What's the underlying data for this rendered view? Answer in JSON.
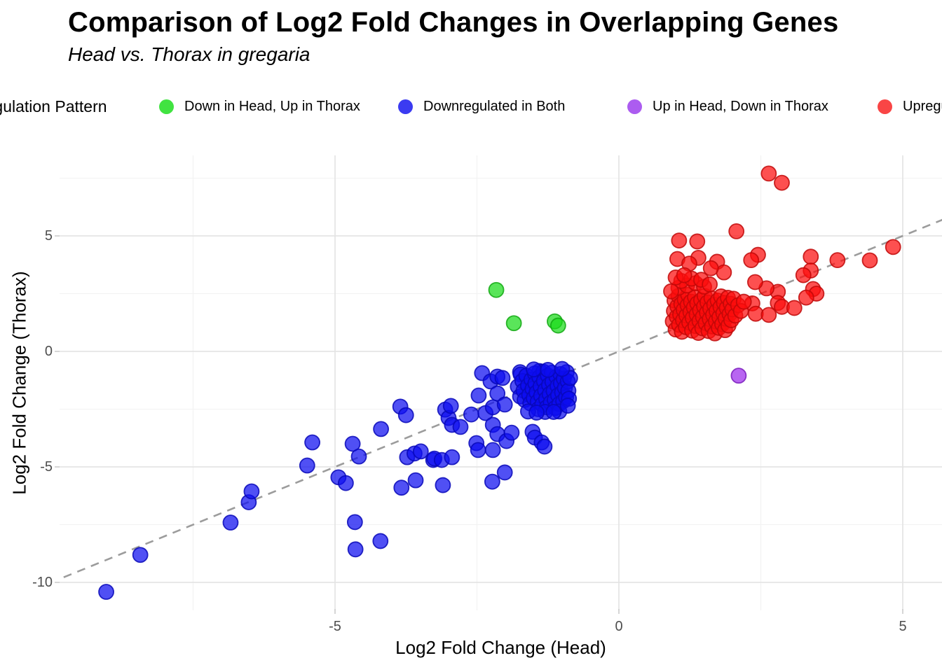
{
  "header": {
    "title": "Comparison of Log2 Fold Changes in Overlapping Genes",
    "subtitle": "Head vs. Thorax in gregaria"
  },
  "chart_data": {
    "type": "scatter",
    "title": "Comparison of Log2 Fold Changes in Overlapping Genes",
    "subtitle": "Head vs. Thorax in gregaria",
    "x_axis": {
      "title": "Log2 Fold Change (Head)",
      "range": [
        -9.85,
        5.7
      ],
      "major_ticks": [
        -5,
        0,
        5
      ],
      "minor_ticks": [
        -7.5,
        -2.5,
        2.5
      ],
      "tick_labels": [
        "-5",
        "0",
        "5"
      ]
    },
    "y_axis": {
      "title": "Log2 Fold Change (Thorax)",
      "range": [
        -11.1,
        8.5
      ],
      "major_ticks": [
        5,
        0,
        -5,
        -10
      ],
      "minor_ticks": [
        7.5,
        2.5,
        -2.5,
        -7.5
      ],
      "tick_labels": [
        "5",
        "0",
        "-5",
        "-10"
      ]
    },
    "grid": {
      "major_color": "#E4E4E4",
      "minor_color": "#F2F2F2"
    },
    "reference_line": {
      "type": "identity y = x",
      "style": "dashed",
      "color": "#9C9C9C"
    },
    "legend": {
      "title": "Regulation Pattern",
      "position": "top",
      "items": [
        {
          "label": "Down in Head, Up in Thorax",
          "color": "#41E341"
        },
        {
          "label": "Downregulated in Both",
          "color": "#3B3BF1"
        },
        {
          "label": "Up in Head, Down in Thorax",
          "color": "#AC5CF0"
        },
        {
          "label": "Upregulated in Both",
          "color": "#F94545"
        }
      ]
    },
    "series": [
      {
        "name": "Down in Head, Up in Thorax",
        "color": "#1ADB1A",
        "stroke": "#12A812",
        "points": [
          [
            -2.16,
            2.66
          ],
          [
            -1.85,
            1.22
          ],
          [
            -1.13,
            1.3
          ],
          [
            -1.07,
            1.12
          ]
        ]
      },
      {
        "name": "Downregulated in Both",
        "color": "#0D0DF0",
        "stroke": "#0808B8",
        "points": [
          [
            -9.03,
            -10.41
          ],
          [
            -8.43,
            -8.81
          ],
          [
            -6.84,
            -7.41
          ],
          [
            -6.52,
            -6.53
          ],
          [
            -6.47,
            -6.06
          ],
          [
            -5.49,
            -4.94
          ],
          [
            -5.4,
            -3.94
          ],
          [
            -4.94,
            -5.45
          ],
          [
            -4.81,
            -5.7
          ],
          [
            -4.69,
            -4.0
          ],
          [
            -4.65,
            -7.39
          ],
          [
            -4.64,
            -8.57
          ],
          [
            -4.58,
            -4.55
          ],
          [
            -4.2,
            -8.21
          ],
          [
            -4.19,
            -3.36
          ],
          [
            -3.85,
            -2.39
          ],
          [
            -3.83,
            -5.9
          ],
          [
            -3.75,
            -2.76
          ],
          [
            -3.73,
            -4.58
          ],
          [
            -3.6,
            -4.42
          ],
          [
            -3.58,
            -5.58
          ],
          [
            -3.49,
            -4.33
          ],
          [
            -3.27,
            -4.7
          ],
          [
            -3.25,
            -4.64
          ],
          [
            -3.12,
            -4.7
          ],
          [
            -3.1,
            -5.79
          ],
          [
            -3.06,
            -2.52
          ],
          [
            -3.0,
            -2.88
          ],
          [
            -2.96,
            -2.36
          ],
          [
            -2.94,
            -4.58
          ],
          [
            -2.94,
            -3.18
          ],
          [
            -2.79,
            -3.27
          ],
          [
            -2.6,
            -2.73
          ],
          [
            -2.51,
            -3.97
          ],
          [
            -2.48,
            -4.27
          ],
          [
            -2.47,
            -1.91
          ],
          [
            -2.41,
            -0.94
          ],
          [
            -2.35,
            -2.67
          ],
          [
            -2.26,
            -1.3
          ],
          [
            -2.23,
            -5.64
          ],
          [
            -2.22,
            -2.42
          ],
          [
            -2.22,
            -3.18
          ],
          [
            -2.22,
            -4.27
          ],
          [
            -2.14,
            -1.09
          ],
          [
            -2.14,
            -1.82
          ],
          [
            -2.14,
            -3.58
          ],
          [
            -2.05,
            -1.15
          ],
          [
            -2.01,
            -2.3
          ],
          [
            -2.01,
            -5.24
          ],
          [
            -1.98,
            -3.88
          ],
          [
            -1.89,
            -3.52
          ],
          [
            -1.74,
            -0.9
          ],
          [
            -1.73,
            -1.0
          ],
          [
            -1.52,
            -3.48
          ],
          [
            -1.48,
            -3.73
          ],
          [
            -1.4,
            -0.85
          ],
          [
            -1.36,
            -3.94
          ],
          [
            -1.31,
            -4.12
          ],
          [
            -1.78,
            -1.52
          ],
          [
            -1.74,
            -1.95
          ],
          [
            -1.7,
            -1.28
          ],
          [
            -1.68,
            -1.7
          ],
          [
            -1.66,
            -2.1
          ],
          [
            -1.63,
            -1.05
          ],
          [
            -1.6,
            -1.48
          ],
          [
            -1.58,
            -1.88
          ],
          [
            -1.56,
            -2.25
          ],
          [
            -1.54,
            -1.22
          ],
          [
            -1.52,
            -1.62
          ],
          [
            -1.5,
            -2.02
          ],
          [
            -1.48,
            -0.95
          ],
          [
            -1.47,
            -1.38
          ],
          [
            -1.45,
            -1.78
          ],
          [
            -1.43,
            -2.18
          ],
          [
            -1.42,
            -2.5
          ],
          [
            -1.4,
            -1.12
          ],
          [
            -1.38,
            -1.52
          ],
          [
            -1.37,
            -1.92
          ],
          [
            -1.35,
            -2.3
          ],
          [
            -1.33,
            -0.88
          ],
          [
            -1.32,
            -1.28
          ],
          [
            -1.3,
            -1.68
          ],
          [
            -1.28,
            -2.06
          ],
          [
            -1.27,
            -2.42
          ],
          [
            -1.25,
            -1.05
          ],
          [
            -1.23,
            -1.45
          ],
          [
            -1.22,
            -1.85
          ],
          [
            -1.2,
            -2.22
          ],
          [
            -1.18,
            -0.92
          ],
          [
            -1.17,
            -1.32
          ],
          [
            -1.15,
            -1.72
          ],
          [
            -1.13,
            -2.1
          ],
          [
            -1.12,
            -2.45
          ],
          [
            -1.1,
            -1.1
          ],
          [
            -1.08,
            -1.5
          ],
          [
            -1.07,
            -1.9
          ],
          [
            -1.05,
            -2.28
          ],
          [
            -1.03,
            -0.98
          ],
          [
            -1.02,
            -1.38
          ],
          [
            -1.0,
            -1.78
          ],
          [
            -0.98,
            -2.15
          ],
          [
            -0.97,
            -1.18
          ],
          [
            -0.95,
            -1.58
          ],
          [
            -0.93,
            -1.98
          ],
          [
            -0.92,
            -0.9
          ],
          [
            -0.9,
            -1.3
          ],
          [
            -0.89,
            -1.7
          ],
          [
            -0.88,
            -2.05
          ],
          [
            -0.86,
            -1.15
          ],
          [
            -1.6,
            -2.6
          ],
          [
            -1.3,
            -2.62
          ],
          [
            -1.05,
            -2.6
          ],
          [
            -1.5,
            -0.78
          ],
          [
            -1.25,
            -0.8
          ],
          [
            -1.0,
            -0.76
          ],
          [
            -0.9,
            -2.35
          ],
          [
            -1.45,
            -2.65
          ],
          [
            -1.15,
            -2.62
          ]
        ]
      },
      {
        "name": "Up in Head, Down in Thorax",
        "color": "#9D2BEB",
        "stroke": "#7A1CBC",
        "points": [
          [
            2.11,
            -1.05
          ]
        ]
      },
      {
        "name": "Upregulated in Both",
        "color": "#FC0D0D",
        "stroke": "#C00808",
        "points": [
          [
            2.64,
            7.7
          ],
          [
            2.87,
            7.3
          ],
          [
            2.07,
            5.2
          ],
          [
            1.06,
            4.8
          ],
          [
            1.38,
            4.76
          ],
          [
            4.83,
            4.52
          ],
          [
            2.45,
            4.18
          ],
          [
            4.42,
            3.94
          ],
          [
            3.38,
            4.1
          ],
          [
            3.85,
            3.95
          ],
          [
            1.03,
            4.0
          ],
          [
            1.4,
            4.05
          ],
          [
            2.33,
            3.95
          ],
          [
            1.24,
            3.8
          ],
          [
            1.73,
            3.88
          ],
          [
            1.85,
            3.42
          ],
          [
            1.62,
            3.6
          ],
          [
            3.38,
            3.5
          ],
          [
            3.25,
            3.3
          ],
          [
            3.42,
            2.7
          ],
          [
            3.48,
            2.5
          ],
          [
            2.8,
            2.58
          ],
          [
            2.6,
            2.73
          ],
          [
            2.4,
            3.0
          ],
          [
            2.35,
            2.08
          ],
          [
            2.41,
            1.63
          ],
          [
            2.64,
            1.58
          ],
          [
            2.8,
            2.1
          ],
          [
            2.87,
            1.93
          ],
          [
            3.09,
            1.88
          ],
          [
            3.3,
            2.33
          ],
          [
            0.95,
            1.3
          ],
          [
            0.97,
            1.75
          ],
          [
            0.98,
            2.2
          ],
          [
            1.0,
            0.95
          ],
          [
            1.02,
            1.5
          ],
          [
            1.03,
            1.95
          ],
          [
            1.05,
            2.4
          ],
          [
            1.06,
            1.15
          ],
          [
            1.08,
            1.6
          ],
          [
            1.1,
            2.05
          ],
          [
            1.11,
            0.85
          ],
          [
            1.13,
            1.35
          ],
          [
            1.14,
            1.8
          ],
          [
            1.16,
            2.25
          ],
          [
            1.18,
            1.05
          ],
          [
            1.19,
            1.55
          ],
          [
            1.21,
            2.0
          ],
          [
            1.22,
            2.45
          ],
          [
            1.24,
            1.25
          ],
          [
            1.26,
            1.7
          ],
          [
            1.27,
            2.15
          ],
          [
            1.29,
            0.9
          ],
          [
            1.3,
            1.45
          ],
          [
            1.32,
            1.9
          ],
          [
            1.34,
            2.35
          ],
          [
            1.35,
            1.1
          ],
          [
            1.37,
            1.6
          ],
          [
            1.38,
            2.08
          ],
          [
            1.4,
            0.8
          ],
          [
            1.42,
            1.32
          ],
          [
            1.43,
            1.78
          ],
          [
            1.45,
            2.22
          ],
          [
            1.47,
            1.0
          ],
          [
            1.48,
            1.5
          ],
          [
            1.5,
            1.95
          ],
          [
            1.51,
            2.4
          ],
          [
            1.53,
            1.22
          ],
          [
            1.55,
            1.68
          ],
          [
            1.56,
            2.12
          ],
          [
            1.58,
            0.88
          ],
          [
            1.6,
            1.4
          ],
          [
            1.61,
            1.85
          ],
          [
            1.63,
            2.3
          ],
          [
            1.64,
            1.08
          ],
          [
            1.66,
            1.58
          ],
          [
            1.68,
            2.02
          ],
          [
            1.69,
            0.78
          ],
          [
            1.71,
            1.3
          ],
          [
            1.72,
            1.75
          ],
          [
            1.74,
            2.2
          ],
          [
            1.76,
            1.02
          ],
          [
            1.77,
            1.48
          ],
          [
            1.79,
            1.92
          ],
          [
            1.8,
            2.38
          ],
          [
            1.82,
            1.18
          ],
          [
            1.84,
            1.65
          ],
          [
            1.85,
            2.1
          ],
          [
            1.87,
            0.92
          ],
          [
            1.88,
            1.42
          ],
          [
            1.9,
            1.88
          ],
          [
            1.92,
            2.32
          ],
          [
            1.93,
            1.12
          ],
          [
            1.95,
            1.62
          ],
          [
            1.97,
            2.06
          ],
          [
            1.98,
            1.35
          ],
          [
            2.0,
            1.82
          ],
          [
            2.02,
            2.28
          ],
          [
            2.05,
            1.55
          ],
          [
            2.1,
            2.0
          ],
          [
            2.15,
            1.75
          ],
          [
            2.2,
            2.15
          ],
          [
            1.05,
            2.75
          ],
          [
            1.2,
            2.85
          ],
          [
            1.35,
            2.95
          ],
          [
            1.1,
            3.05
          ],
          [
            1.5,
            2.8
          ],
          [
            1.28,
            3.15
          ],
          [
            1.45,
            3.1
          ],
          [
            1.6,
            2.9
          ],
          [
            0.92,
            2.6
          ],
          [
            1.0,
            3.2
          ],
          [
            1.15,
            3.3
          ]
        ]
      }
    ]
  }
}
